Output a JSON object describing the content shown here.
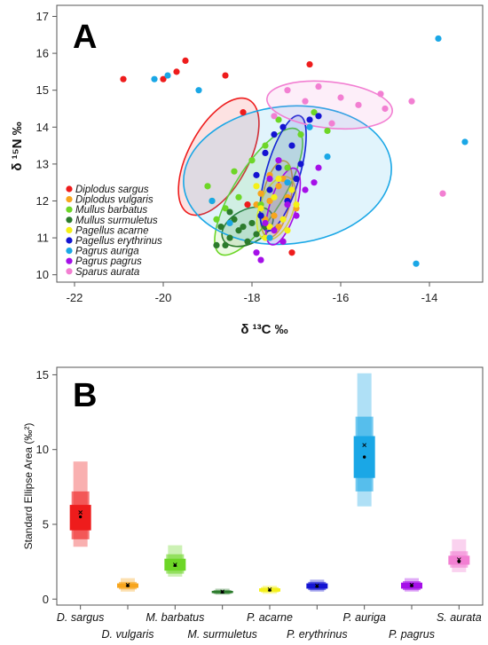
{
  "chart_data": [
    {
      "type": "scatter",
      "panel_label": "A",
      "xlabel": "δ ¹³C ‰",
      "ylabel": "δ ¹⁵N ‰",
      "xlim": [
        -22.4,
        -12.8
      ],
      "ylim": [
        9.8,
        17.3
      ],
      "xticks": [
        "-22",
        "-20",
        "-18",
        "-16",
        "-14"
      ],
      "xtick_values": [
        -22,
        -20,
        -18,
        -16,
        -14
      ],
      "yticks": [
        "10",
        "11",
        "12",
        "13",
        "14",
        "15",
        "16",
        "17"
      ],
      "ytick_values": [
        10,
        11,
        12,
        13,
        14,
        15,
        16,
        17
      ],
      "legend_position": "bottom-left",
      "series": [
        {
          "name": "Diplodus sargus",
          "color": "#ee1c1c",
          "points": [
            [
              -20.9,
              15.3
            ],
            [
              -20.0,
              15.3
            ],
            [
              -19.7,
              15.5
            ],
            [
              -19.5,
              15.8
            ],
            [
              -18.6,
              15.4
            ],
            [
              -18.2,
              14.4
            ],
            [
              -16.7,
              15.7
            ],
            [
              -17.8,
              11.6
            ],
            [
              -18.1,
              11.9
            ],
            [
              -17.3,
              10.9
            ],
            [
              -17.1,
              10.6
            ]
          ],
          "ellipse": {
            "cx": -18.75,
            "cy": 13.2,
            "rx": 1.45,
            "ry": 0.68,
            "angle": 62
          }
        },
        {
          "name": "Diplodus vulgaris",
          "color": "#f7a51d",
          "points": [
            [
              -17.8,
              12.2
            ],
            [
              -17.6,
              12.0
            ],
            [
              -17.4,
              12.4
            ],
            [
              -17.2,
              12.1
            ],
            [
              -17.9,
              11.9
            ],
            [
              -17.5,
              11.6
            ],
            [
              -17.3,
              12.6
            ],
            [
              -17.7,
              11.5
            ],
            [
              -17.0,
              11.8
            ],
            [
              -17.4,
              11.3
            ],
            [
              -17.6,
              12.7
            ]
          ],
          "ellipse": {
            "cx": -17.45,
            "cy": 12.05,
            "rx": 0.88,
            "ry": 0.32,
            "angle": 78
          }
        },
        {
          "name": "Mullus barbatus",
          "color": "#6dd627",
          "points": [
            [
              -19.0,
              12.4
            ],
            [
              -18.4,
              12.8
            ],
            [
              -18.0,
              13.1
            ],
            [
              -17.7,
              13.5
            ],
            [
              -17.4,
              14.2
            ],
            [
              -16.9,
              13.8
            ],
            [
              -18.6,
              11.8
            ],
            [
              -18.3,
              12.1
            ],
            [
              -17.8,
              11.9
            ],
            [
              -16.6,
              14.4
            ],
            [
              -18.8,
              11.5
            ],
            [
              -17.2,
              12.9
            ],
            [
              -16.3,
              13.9
            ],
            [
              -18.9,
              12.0
            ]
          ],
          "ellipse": {
            "cx": -17.85,
            "cy": 12.25,
            "rx": 1.65,
            "ry": 0.55,
            "angle": 58
          }
        },
        {
          "name": "Mullus surmuletus",
          "color": "#2c7b2c",
          "points": [
            [
              -18.8,
              10.8
            ],
            [
              -18.5,
              11.0
            ],
            [
              -18.3,
              11.2
            ],
            [
              -18.0,
              11.4
            ],
            [
              -18.6,
              10.8
            ],
            [
              -18.2,
              11.3
            ],
            [
              -17.9,
              11.1
            ],
            [
              -18.4,
              11.5
            ],
            [
              -17.8,
              11.6
            ],
            [
              -18.7,
              11.3
            ],
            [
              -18.1,
              10.9
            ],
            [
              -18.5,
              11.7
            ],
            [
              -17.7,
              11.3
            ]
          ],
          "ellipse": {
            "cx": -18.1,
            "cy": 11.3,
            "rx": 0.62,
            "ry": 0.38,
            "angle": 28
          }
        },
        {
          "name": "Pagellus acarne",
          "color": "#f4f016",
          "points": [
            [
              -17.8,
              11.8
            ],
            [
              -17.5,
              12.1
            ],
            [
              -17.3,
              11.5
            ],
            [
              -17.1,
              12.3
            ],
            [
              -17.6,
              11.3
            ],
            [
              -17.9,
              12.4
            ],
            [
              -17.4,
              12.6
            ],
            [
              -17.0,
              11.9
            ],
            [
              -17.7,
              11.0
            ],
            [
              -17.2,
              11.2
            ]
          ],
          "ellipse": {
            "cx": -17.45,
            "cy": 11.8,
            "rx": 0.75,
            "ry": 0.38,
            "angle": 70
          }
        },
        {
          "name": "Pagellus erythrinus",
          "color": "#1414d2",
          "points": [
            [
              -17.7,
              13.3
            ],
            [
              -17.4,
              12.9
            ],
            [
              -17.1,
              13.5
            ],
            [
              -16.7,
              14.2
            ],
            [
              -17.6,
              12.3
            ],
            [
              -17.2,
              12.0
            ],
            [
              -17.9,
              12.7
            ],
            [
              -16.9,
              13.0
            ],
            [
              -17.5,
              13.8
            ],
            [
              -17.3,
              14.0
            ],
            [
              -17.8,
              11.6
            ],
            [
              -16.5,
              14.3
            ],
            [
              -17.0,
              12.6
            ]
          ],
          "ellipse": {
            "cx": -17.3,
            "cy": 12.75,
            "rx": 1.35,
            "ry": 0.38,
            "angle": 74
          }
        },
        {
          "name": "Pagrus auriga",
          "color": "#1aa7e6",
          "points": [
            [
              -20.2,
              15.3
            ],
            [
              -19.9,
              15.4
            ],
            [
              -19.2,
              15.0
            ],
            [
              -13.8,
              16.4
            ],
            [
              -13.2,
              13.6
            ],
            [
              -14.3,
              10.3
            ],
            [
              -18.5,
              11.4
            ],
            [
              -17.6,
              11.0
            ],
            [
              -16.7,
              14.0
            ],
            [
              -18.9,
              12.0
            ],
            [
              -17.2,
              12.5
            ],
            [
              -16.3,
              13.2
            ]
          ],
          "ellipse": {
            "cx": -17.2,
            "cy": 12.7,
            "rx": 2.35,
            "ry": 1.55,
            "angle": 6
          }
        },
        {
          "name": "Pagrus pagrus",
          "color": "#a50fe8",
          "points": [
            [
              -17.9,
              10.6
            ],
            [
              -17.8,
              10.4
            ],
            [
              -17.5,
              11.2
            ],
            [
              -17.2,
              11.9
            ],
            [
              -16.8,
              12.3
            ],
            [
              -17.6,
              12.6
            ],
            [
              -17.3,
              10.9
            ],
            [
              -17.0,
              11.6
            ],
            [
              -16.6,
              12.5
            ],
            [
              -17.4,
              13.1
            ],
            [
              -16.5,
              12.9
            ],
            [
              -17.7,
              11.4
            ]
          ],
          "ellipse": {
            "cx": -17.3,
            "cy": 11.85,
            "rx": 0.9,
            "ry": 0.3,
            "angle": 73
          }
        },
        {
          "name": "Sparus aurata",
          "color": "#f27fd2",
          "points": [
            [
              -17.2,
              15.0
            ],
            [
              -16.8,
              14.7
            ],
            [
              -16.5,
              15.1
            ],
            [
              -16.0,
              14.8
            ],
            [
              -15.6,
              14.6
            ],
            [
              -15.1,
              14.9
            ],
            [
              -14.4,
              14.7
            ],
            [
              -13.7,
              12.2
            ],
            [
              -17.5,
              14.3
            ],
            [
              -16.2,
              14.1
            ],
            [
              -15.0,
              14.5
            ]
          ],
          "ellipse": {
            "cx": -16.25,
            "cy": 14.6,
            "rx": 1.42,
            "ry": 0.52,
            "angle": -6
          }
        }
      ]
    },
    {
      "type": "boxplot",
      "panel_label": "B",
      "ylabel": "Standard Ellipse Area (‰²)",
      "ylim": [
        -0.4,
        15.5
      ],
      "yticks": [
        "0",
        "5",
        "10",
        "15"
      ],
      "ytick_values": [
        0,
        5,
        10,
        15
      ],
      "categories": [
        "D. sargus",
        "D. vulgaris",
        "M. barbatus",
        "M. surmuletus",
        "P. acarne",
        "P. erythrinus",
        "P. auriga",
        "P. pagrus",
        "S. aurata"
      ],
      "series": [
        {
          "name": "D. sargus",
          "color": "#ee1c1c",
          "ci95": [
            3.5,
            9.2
          ],
          "ci75": [
            4.0,
            7.2
          ],
          "ci50": [
            4.6,
            6.3
          ],
          "mode": 5.5,
          "mean": 5.8
        },
        {
          "name": "D. vulgaris",
          "color": "#f7a51d",
          "ci95": [
            0.5,
            1.4
          ],
          "ci75": [
            0.65,
            1.15
          ],
          "ci50": [
            0.75,
            1.05
          ],
          "mode": 0.9,
          "mean": 0.95
        },
        {
          "name": "M. barbatus",
          "color": "#6dd627",
          "ci95": [
            1.5,
            3.6
          ],
          "ci75": [
            1.7,
            3.0
          ],
          "ci50": [
            1.9,
            2.7
          ],
          "mode": 2.25,
          "mean": 2.3
        },
        {
          "name": "M. surmuletus",
          "color": "#2c7b2c",
          "ci95": [
            0.3,
            0.7
          ],
          "ci75": [
            0.35,
            0.6
          ],
          "ci50": [
            0.4,
            0.55
          ],
          "mode": 0.47,
          "mean": 0.5
        },
        {
          "name": "P. acarne",
          "color": "#f4f016",
          "ci95": [
            0.35,
            0.9
          ],
          "ci75": [
            0.45,
            0.8
          ],
          "ci50": [
            0.5,
            0.72
          ],
          "mode": 0.6,
          "mean": 0.65
        },
        {
          "name": "P. erythrinus",
          "color": "#1414d2",
          "ci95": [
            0.5,
            1.3
          ],
          "ci75": [
            0.6,
            1.15
          ],
          "ci50": [
            0.7,
            1.05
          ],
          "mode": 0.85,
          "mean": 0.9
        },
        {
          "name": "P. auriga",
          "color": "#1aa7e6",
          "ci95": [
            6.2,
            15.1
          ],
          "ci75": [
            7.2,
            12.2
          ],
          "ci50": [
            8.1,
            10.9
          ],
          "mode": 9.5,
          "mean": 10.3
        },
        {
          "name": "P. pagrus",
          "color": "#a50fe8",
          "ci95": [
            0.5,
            1.4
          ],
          "ci75": [
            0.6,
            1.2
          ],
          "ci50": [
            0.7,
            1.1
          ],
          "mode": 0.9,
          "mean": 0.95
        },
        {
          "name": "S. aurata",
          "color": "#f27fd2",
          "ci95": [
            1.8,
            4.0
          ],
          "ci75": [
            2.1,
            3.2
          ],
          "ci50": [
            2.3,
            2.9
          ],
          "mode": 2.5,
          "mean": 2.65
        }
      ]
    }
  ]
}
